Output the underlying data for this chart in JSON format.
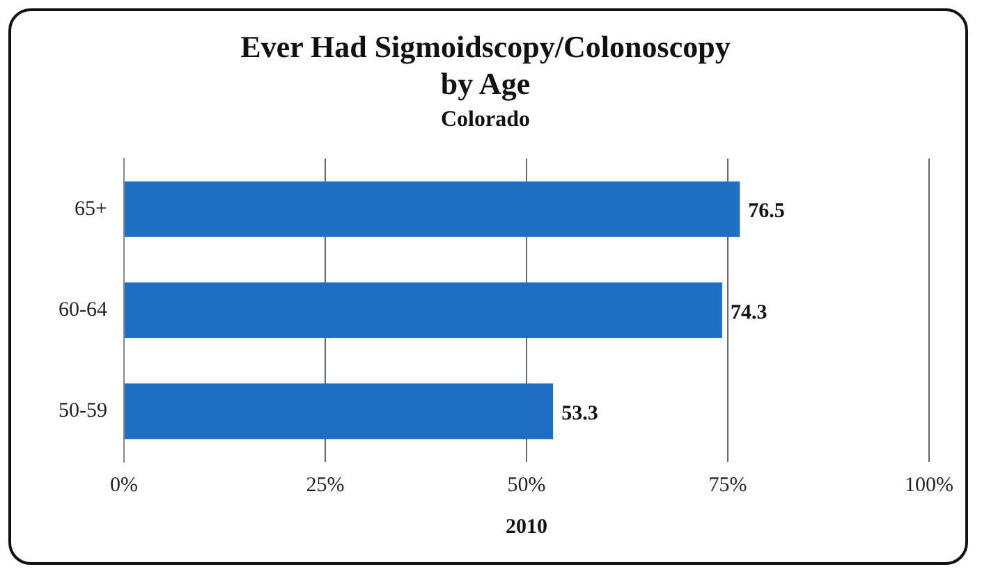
{
  "chart_data": {
    "type": "bar",
    "orientation": "horizontal",
    "title": "Ever Had Sigmoidscopy/Colonoscopy\nby Age",
    "subtitle": "Colorado",
    "xlabel": "2010",
    "categories": [
      "65+",
      "60-64",
      "50-59"
    ],
    "values": [
      76.5,
      74.3,
      53.3
    ],
    "color": "#1f6fc5",
    "xlim": [
      0,
      100
    ],
    "xticks": [
      {
        "value": 0,
        "label": "0%"
      },
      {
        "value": 25,
        "label": "25%"
      },
      {
        "value": 50,
        "label": "50%"
      },
      {
        "value": 75,
        "label": "75%"
      },
      {
        "value": 100,
        "label": "100%"
      }
    ],
    "grid": "x",
    "data_labels": true,
    "legend": false
  }
}
